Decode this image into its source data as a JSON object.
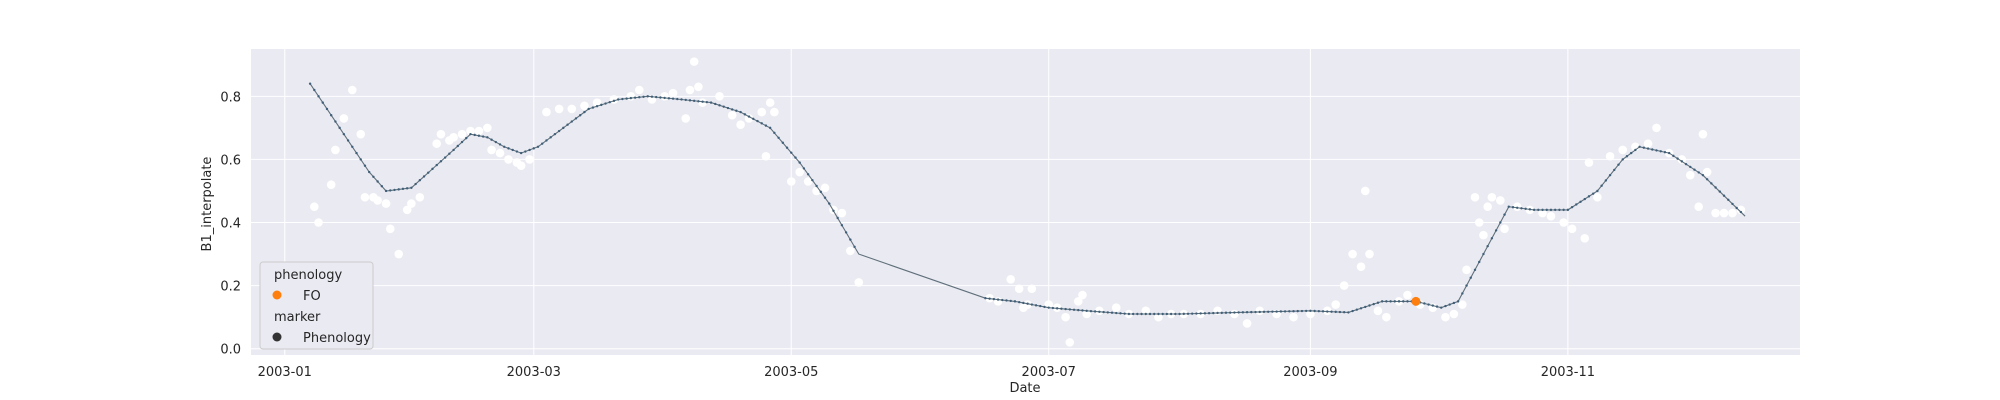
{
  "chart_data": {
    "type": "scatter",
    "title": "",
    "xlabel": "Date",
    "ylabel": "B1_interpolate",
    "x_axis_type": "date",
    "xlim": [
      "2002-12-24",
      "2003-12-26"
    ],
    "ylim": [
      -0.02,
      0.95
    ],
    "x_ticks": [
      "2003-01-01",
      "2003-03-01",
      "2003-05-01",
      "2003-07-01",
      "2003-09-01",
      "2003-11-01"
    ],
    "x_tick_labels": [
      "2003-01",
      "2003-03",
      "2003-05",
      "2003-07",
      "2003-09",
      "2003-11"
    ],
    "y_ticks": [
      0.0,
      0.2,
      0.4,
      0.6,
      0.8
    ],
    "y_tick_labels": [
      "0.0",
      "0.2",
      "0.4",
      "0.6",
      "0.8"
    ],
    "grid": true,
    "background": "#eaeaf2",
    "legend": {
      "placement": "lower-left",
      "hue_title": "phenology",
      "hue_entries": [
        {
          "label": "FO",
          "color": "#ff7f0e"
        }
      ],
      "style_title": "marker",
      "style_entries": [
        {
          "label": "Phenology",
          "color": "#333333"
        }
      ]
    },
    "series": [
      {
        "kind": "scatter",
        "color": "#ffffff",
        "points": [
          [
            "2003-01-08",
            0.45
          ],
          [
            "2003-01-09",
            0.4
          ],
          [
            "2003-01-12",
            0.52
          ],
          [
            "2003-01-13",
            0.63
          ],
          [
            "2003-01-15",
            0.73
          ],
          [
            "2003-01-17",
            0.82
          ],
          [
            "2003-01-19",
            0.68
          ],
          [
            "2003-01-20",
            0.48
          ],
          [
            "2003-01-22",
            0.48
          ],
          [
            "2003-01-23",
            0.47
          ],
          [
            "2003-01-25",
            0.46
          ],
          [
            "2003-01-26",
            0.38
          ],
          [
            "2003-01-28",
            0.3
          ],
          [
            "2003-01-30",
            0.44
          ],
          [
            "2003-01-31",
            0.46
          ],
          [
            "2003-02-02",
            0.48
          ],
          [
            "2003-02-06",
            0.65
          ],
          [
            "2003-02-07",
            0.68
          ],
          [
            "2003-02-09",
            0.66
          ],
          [
            "2003-02-10",
            0.67
          ],
          [
            "2003-02-12",
            0.68
          ],
          [
            "2003-02-14",
            0.69
          ],
          [
            "2003-02-16",
            0.69
          ],
          [
            "2003-02-18",
            0.7
          ],
          [
            "2003-02-19",
            0.63
          ],
          [
            "2003-02-21",
            0.62
          ],
          [
            "2003-02-23",
            0.6
          ],
          [
            "2003-02-25",
            0.59
          ],
          [
            "2003-02-26",
            0.58
          ],
          [
            "2003-02-28",
            0.6
          ],
          [
            "2003-03-04",
            0.75
          ],
          [
            "2003-03-07",
            0.76
          ],
          [
            "2003-03-10",
            0.76
          ],
          [
            "2003-03-13",
            0.77
          ],
          [
            "2003-03-16",
            0.78
          ],
          [
            "2003-03-20",
            0.79
          ],
          [
            "2003-03-24",
            0.8
          ],
          [
            "2003-03-26",
            0.82
          ],
          [
            "2003-03-29",
            0.79
          ],
          [
            "2003-04-01",
            0.8
          ],
          [
            "2003-04-03",
            0.81
          ],
          [
            "2003-04-06",
            0.73
          ],
          [
            "2003-04-07",
            0.82
          ],
          [
            "2003-04-08",
            0.91
          ],
          [
            "2003-04-09",
            0.83
          ],
          [
            "2003-04-10",
            0.78
          ],
          [
            "2003-04-14",
            0.8
          ],
          [
            "2003-04-17",
            0.74
          ],
          [
            "2003-04-19",
            0.71
          ],
          [
            "2003-04-21",
            0.73
          ],
          [
            "2003-04-24",
            0.75
          ],
          [
            "2003-04-25",
            0.61
          ],
          [
            "2003-04-26",
            0.78
          ],
          [
            "2003-04-27",
            0.75
          ],
          [
            "2003-05-01",
            0.53
          ],
          [
            "2003-05-03",
            0.56
          ],
          [
            "2003-05-05",
            0.53
          ],
          [
            "2003-05-07",
            0.5
          ],
          [
            "2003-05-09",
            0.51
          ],
          [
            "2003-05-11",
            0.44
          ],
          [
            "2003-05-13",
            0.43
          ],
          [
            "2003-05-15",
            0.31
          ],
          [
            "2003-05-17",
            0.21
          ],
          [
            "2003-06-17",
            0.16
          ],
          [
            "2003-06-19",
            0.15
          ],
          [
            "2003-06-22",
            0.22
          ],
          [
            "2003-06-24",
            0.19
          ],
          [
            "2003-06-25",
            0.13
          ],
          [
            "2003-06-26",
            0.14
          ],
          [
            "2003-06-27",
            0.19
          ],
          [
            "2003-07-01",
            0.14
          ],
          [
            "2003-07-03",
            0.13
          ],
          [
            "2003-07-05",
            0.1
          ],
          [
            "2003-07-06",
            0.02
          ],
          [
            "2003-07-08",
            0.15
          ],
          [
            "2003-07-09",
            0.17
          ],
          [
            "2003-07-10",
            0.11
          ],
          [
            "2003-07-13",
            0.12
          ],
          [
            "2003-07-17",
            0.13
          ],
          [
            "2003-07-20",
            0.11
          ],
          [
            "2003-07-24",
            0.12
          ],
          [
            "2003-07-27",
            0.1
          ],
          [
            "2003-07-30",
            0.11
          ],
          [
            "2003-08-02",
            0.11
          ],
          [
            "2003-08-06",
            0.11
          ],
          [
            "2003-08-10",
            0.12
          ],
          [
            "2003-08-14",
            0.11
          ],
          [
            "2003-08-17",
            0.08
          ],
          [
            "2003-08-20",
            0.12
          ],
          [
            "2003-08-24",
            0.11
          ],
          [
            "2003-08-28",
            0.1
          ],
          [
            "2003-09-01",
            0.11
          ],
          [
            "2003-09-05",
            0.12
          ],
          [
            "2003-09-07",
            0.14
          ],
          [
            "2003-09-09",
            0.2
          ],
          [
            "2003-09-11",
            0.3
          ],
          [
            "2003-09-13",
            0.26
          ],
          [
            "2003-09-14",
            0.5
          ],
          [
            "2003-09-15",
            0.3
          ],
          [
            "2003-09-17",
            0.12
          ],
          [
            "2003-09-19",
            0.1
          ],
          [
            "2003-09-22",
            0.15
          ],
          [
            "2003-09-24",
            0.17
          ],
          [
            "2003-09-27",
            0.14
          ],
          [
            "2003-09-30",
            0.13
          ],
          [
            "2003-10-03",
            0.1
          ],
          [
            "2003-10-05",
            0.11
          ],
          [
            "2003-10-07",
            0.14
          ],
          [
            "2003-10-08",
            0.25
          ],
          [
            "2003-10-10",
            0.48
          ],
          [
            "2003-10-11",
            0.4
          ],
          [
            "2003-10-12",
            0.36
          ],
          [
            "2003-10-13",
            0.45
          ],
          [
            "2003-10-14",
            0.48
          ],
          [
            "2003-10-16",
            0.47
          ],
          [
            "2003-10-17",
            0.38
          ],
          [
            "2003-10-20",
            0.45
          ],
          [
            "2003-10-23",
            0.44
          ],
          [
            "2003-10-26",
            0.43
          ],
          [
            "2003-10-28",
            0.42
          ],
          [
            "2003-10-31",
            0.4
          ],
          [
            "2003-11-02",
            0.38
          ],
          [
            "2003-11-05",
            0.35
          ],
          [
            "2003-11-06",
            0.59
          ],
          [
            "2003-11-08",
            0.48
          ],
          [
            "2003-11-11",
            0.61
          ],
          [
            "2003-11-14",
            0.63
          ],
          [
            "2003-11-17",
            0.64
          ],
          [
            "2003-11-20",
            0.65
          ],
          [
            "2003-11-22",
            0.7
          ],
          [
            "2003-11-25",
            0.62
          ],
          [
            "2003-11-28",
            0.6
          ],
          [
            "2003-11-30",
            0.55
          ],
          [
            "2003-12-02",
            0.45
          ],
          [
            "2003-12-03",
            0.68
          ],
          [
            "2003-12-04",
            0.56
          ],
          [
            "2003-12-06",
            0.43
          ],
          [
            "2003-12-08",
            0.43
          ],
          [
            "2003-12-10",
            0.43
          ],
          [
            "2003-12-12",
            0.44
          ]
        ]
      },
      {
        "kind": "line",
        "color": "#5f6f7a",
        "marker_color": "#3f5f78",
        "points": [
          [
            "2003-01-07",
            0.84
          ],
          [
            "2003-01-12",
            0.74
          ],
          [
            "2003-01-17",
            0.64
          ],
          [
            "2003-01-21",
            0.56
          ],
          [
            "2003-01-25",
            0.5
          ],
          [
            "2003-01-31",
            0.51
          ],
          [
            "2003-02-05",
            0.57
          ],
          [
            "2003-02-10",
            0.63
          ],
          [
            "2003-02-14",
            0.68
          ],
          [
            "2003-02-18",
            0.67
          ],
          [
            "2003-02-22",
            0.64
          ],
          [
            "2003-02-26",
            0.62
          ],
          [
            "2003-03-02",
            0.64
          ],
          [
            "2003-03-08",
            0.7
          ],
          [
            "2003-03-14",
            0.76
          ],
          [
            "2003-03-21",
            0.79
          ],
          [
            "2003-03-28",
            0.8
          ],
          [
            "2003-04-05",
            0.79
          ],
          [
            "2003-04-12",
            0.78
          ],
          [
            "2003-04-19",
            0.75
          ],
          [
            "2003-04-26",
            0.7
          ],
          [
            "2003-05-03",
            0.59
          ],
          [
            "2003-05-10",
            0.46
          ],
          [
            "2003-05-17",
            0.3
          ],
          [
            "2003-06-16",
            0.16
          ],
          [
            "2003-06-23",
            0.15
          ],
          [
            "2003-07-01",
            0.13
          ],
          [
            "2003-07-10",
            0.12
          ],
          [
            "2003-07-20",
            0.11
          ],
          [
            "2003-08-01",
            0.11
          ],
          [
            "2003-08-15",
            0.115
          ],
          [
            "2003-09-01",
            0.12
          ],
          [
            "2003-09-10",
            0.115
          ],
          [
            "2003-09-18",
            0.15
          ],
          [
            "2003-09-26",
            0.15
          ],
          [
            "2003-10-02",
            0.13
          ],
          [
            "2003-10-06",
            0.15
          ],
          [
            "2003-10-10",
            0.25
          ],
          [
            "2003-10-14",
            0.35
          ],
          [
            "2003-10-18",
            0.45
          ],
          [
            "2003-10-24",
            0.44
          ],
          [
            "2003-11-01",
            0.44
          ],
          [
            "2003-11-08",
            0.5
          ],
          [
            "2003-11-14",
            0.6
          ],
          [
            "2003-11-18",
            0.64
          ],
          [
            "2003-11-25",
            0.62
          ],
          [
            "2003-12-03",
            0.55
          ],
          [
            "2003-12-13",
            0.42
          ]
        ]
      },
      {
        "kind": "scatter",
        "name": "FO",
        "color": "#ff7f0e",
        "points": [
          [
            "2003-09-26",
            0.15
          ]
        ]
      }
    ]
  }
}
